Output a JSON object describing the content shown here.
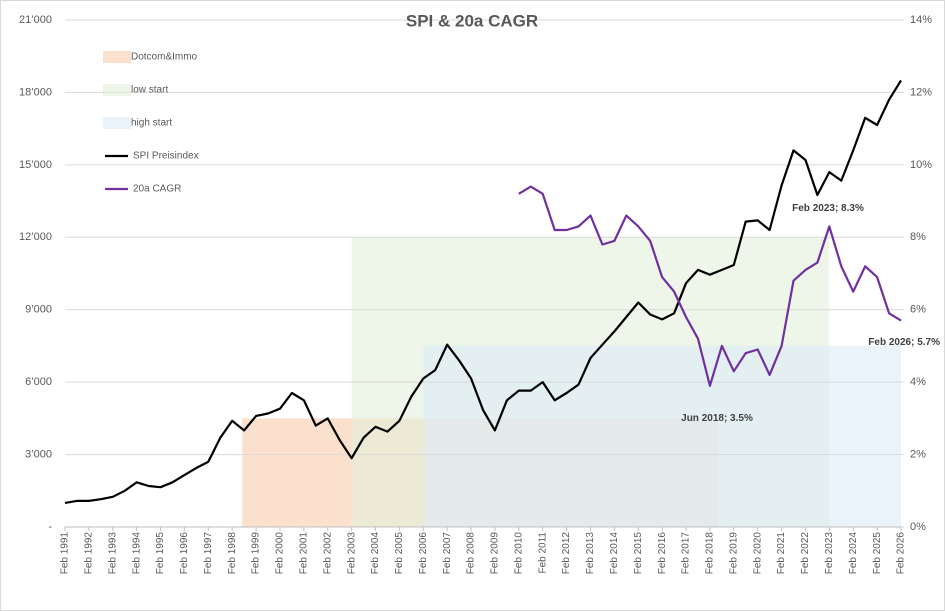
{
  "chart_data": {
    "type": "line",
    "title": "SPI & 20a CAGR",
    "categories": [
      "Feb 1991",
      null,
      "Feb 1992",
      null,
      "Feb 1993",
      null,
      "Feb 1994",
      null,
      "Feb 1995",
      null,
      "Feb 1996",
      null,
      "Feb 1997",
      null,
      "Feb 1998",
      null,
      "Feb 1999",
      null,
      "Feb 2000",
      null,
      "Feb 2001",
      null,
      "Feb 2002",
      null,
      "Feb 2003",
      null,
      "Feb 2004",
      null,
      "Feb 2005",
      null,
      "Feb 2006",
      null,
      "Feb 2007",
      null,
      "Feb 2008",
      null,
      "Feb 2009",
      null,
      "Feb 2010",
      null,
      "Feb 2011",
      null,
      "Feb 2012",
      null,
      "Feb 2013",
      null,
      "Feb 2014",
      null,
      "Feb 2015",
      null,
      "Feb 2016",
      null,
      "Feb 2017",
      null,
      "Feb 2018",
      null,
      "Feb 2019",
      null,
      "Feb 2020",
      null,
      "Feb 2021",
      null,
      "Feb 2022",
      null,
      "Feb 2023",
      null,
      "Feb 2024",
      null,
      "Feb 2025",
      null,
      "Feb 2026"
    ],
    "series": [
      {
        "name": "SPI Preisindex",
        "color": "#000000",
        "values": [
          1000,
          1080,
          1080,
          1150,
          1250,
          1500,
          1850,
          1700,
          1650,
          1850,
          2150,
          2450,
          2700,
          3700,
          4400,
          4000,
          4600,
          4700,
          4900,
          5550,
          5250,
          4200,
          4500,
          3600,
          2850,
          3700,
          4150,
          3950,
          4400,
          5400,
          6150,
          6500,
          7550,
          6900,
          6150,
          4850,
          4000,
          5250,
          5650,
          5650,
          6000,
          5250,
          5550,
          5900,
          7000,
          7550,
          8100,
          8700,
          9300,
          8800,
          8600,
          8850,
          10100,
          10650,
          10450,
          10650,
          10850,
          12650,
          12700,
          12300,
          14150,
          15600,
          15200,
          13750,
          14700,
          14350,
          15600,
          16950,
          16650,
          17700,
          18500
        ]
      },
      {
        "name": "20a CAGR",
        "color": "#7030a0",
        "axis": "y2",
        "values": [
          null,
          null,
          null,
          null,
          null,
          null,
          null,
          null,
          null,
          null,
          null,
          null,
          null,
          null,
          null,
          null,
          null,
          null,
          null,
          null,
          null,
          null,
          null,
          null,
          null,
          null,
          null,
          null,
          null,
          null,
          null,
          null,
          null,
          null,
          null,
          null,
          null,
          null,
          9.2,
          9.4,
          9.2,
          8.2,
          8.2,
          8.3,
          8.6,
          7.8,
          7.9,
          8.6,
          8.3,
          7.9,
          6.9,
          6.5,
          5.8,
          5.2,
          3.9,
          5.0,
          4.3,
          4.8,
          4.9,
          4.2,
          5.0,
          6.8,
          7.1,
          7.3,
          8.3,
          7.2,
          6.5,
          7.2,
          6.9,
          5.9,
          5.7
        ]
      }
    ],
    "bands": [
      {
        "name": "Dotcom&Immo",
        "color": "#f8cbad",
        "start": 1998.5,
        "end": 2018.42,
        "value": 4500
      },
      {
        "name": "low start",
        "color": "#e2efda",
        "start": 2003.08,
        "end": 2023.08,
        "value": 12000
      },
      {
        "name": "high start",
        "color": "#ddebf7",
        "start": 2006.08,
        "end": 2026.08,
        "value": 7500
      }
    ],
    "ylim": [
      0,
      21000
    ],
    "yticks": [
      {
        "value": 0,
        "label": "-"
      },
      {
        "value": 3000,
        "label": "3’000"
      },
      {
        "value": 6000,
        "label": "6’000"
      },
      {
        "value": 9000,
        "label": "9’000"
      },
      {
        "value": 12000,
        "label": "12’000"
      },
      {
        "value": 15000,
        "label": "15’000"
      },
      {
        "value": 18000,
        "label": "18’000"
      },
      {
        "value": 21000,
        "label": "21’000"
      }
    ],
    "y2lim": [
      0,
      14
    ],
    "y2ticks": [
      {
        "value": 0,
        "label": "0%"
      },
      {
        "value": 2,
        "label": "2%"
      },
      {
        "value": 4,
        "label": "4%"
      },
      {
        "value": 6,
        "label": "6%"
      },
      {
        "value": 8,
        "label": "8%"
      },
      {
        "value": 10,
        "label": "10%"
      },
      {
        "value": 12,
        "label": "12%"
      },
      {
        "value": 14,
        "label": "14%"
      }
    ],
    "xlim": [
      1991.08,
      2026.08
    ],
    "grid": true,
    "legend": "top-left",
    "annotations": [
      {
        "label": "Feb 2023; 8.3%",
        "value": 8.3
      },
      {
        "label": "Jun 2018; 3.5%",
        "value": 3.5
      },
      {
        "label": "Feb 2026; 5.7%",
        "value": 5.7
      }
    ]
  }
}
